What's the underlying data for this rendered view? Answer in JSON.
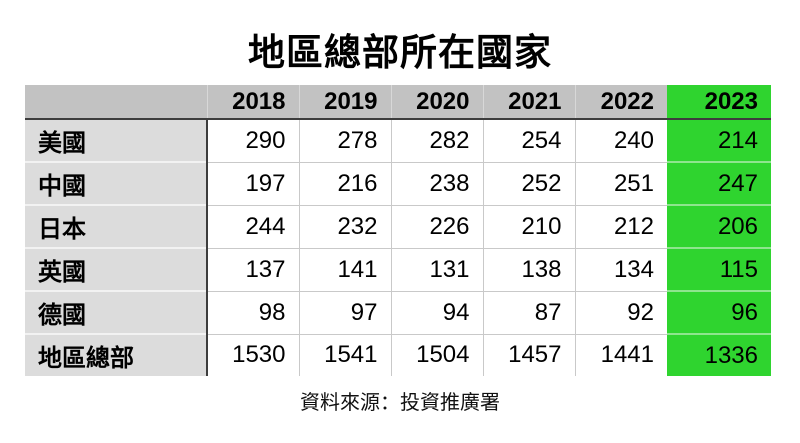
{
  "title": "地區總部所在國家",
  "source_note": "資料來源：投資推廣署",
  "colors": {
    "highlight_green": "#2fd42f",
    "header_gray": "#c2c2c2",
    "label_gray": "#dcdcdc"
  },
  "chart_data": {
    "type": "table",
    "title": "地區總部所在國家",
    "columns": [
      "",
      "2018",
      "2019",
      "2020",
      "2021",
      "2022",
      "2023"
    ],
    "highlighted_column": "2023",
    "rows": [
      {
        "label": "美國",
        "values": [
          290,
          278,
          282,
          254,
          240,
          214
        ]
      },
      {
        "label": "中國",
        "values": [
          197,
          216,
          238,
          252,
          251,
          247
        ]
      },
      {
        "label": "日本",
        "values": [
          244,
          232,
          226,
          210,
          212,
          206
        ]
      },
      {
        "label": "英國",
        "values": [
          137,
          141,
          131,
          138,
          134,
          115
        ]
      },
      {
        "label": "德國",
        "values": [
          98,
          97,
          94,
          87,
          92,
          96
        ]
      },
      {
        "label": "地區總部",
        "values": [
          1530,
          1541,
          1504,
          1457,
          1441,
          1336
        ]
      }
    ],
    "source": "資料來源：投資推廣署",
    "legend_position": "none",
    "grid": "cell-borders"
  }
}
